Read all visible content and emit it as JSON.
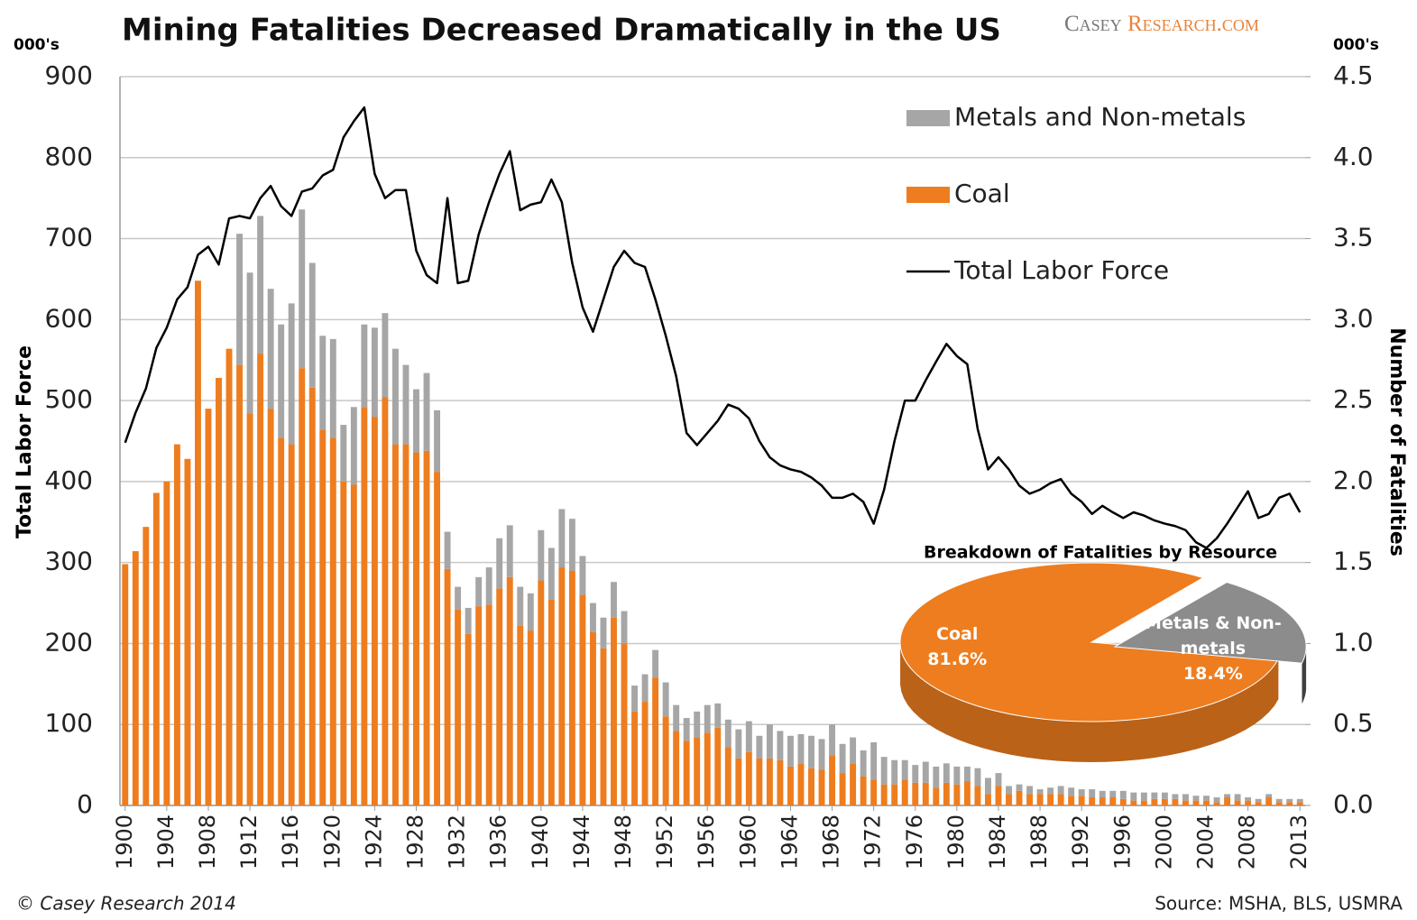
{
  "chart_data": [
    {
      "type": "bar",
      "title": "Mining Fatalities Decreased Dramatically in the US",
      "brand": [
        "Casey ",
        "Research.com"
      ],
      "y_unit": "000's",
      "y2_unit": "000's",
      "ylabel": "Total Labor  Force",
      "y2label": "Number of Fatalities",
      "footer": "© Casey Research 2014",
      "source": "Source:  MSHA, BLS, USMRA",
      "stacked": true,
      "grid": true,
      "categories": [
        "1900",
        null,
        null,
        null,
        "1904",
        null,
        null,
        null,
        "1908",
        null,
        null,
        null,
        "1912",
        null,
        null,
        null,
        "1916",
        null,
        null,
        null,
        "1920",
        null,
        null,
        null,
        "1924",
        null,
        null,
        null,
        "1928",
        null,
        null,
        null,
        "1932",
        null,
        null,
        null,
        "1936",
        null,
        null,
        null,
        "1940",
        null,
        null,
        null,
        "1944",
        null,
        null,
        null,
        "1948",
        null,
        null,
        null,
        "1952",
        null,
        null,
        null,
        "1956",
        null,
        null,
        null,
        "1960",
        null,
        null,
        null,
        "1964",
        null,
        null,
        null,
        "1968",
        null,
        null,
        null,
        "1972",
        null,
        null,
        null,
        "1976",
        null,
        null,
        null,
        "1980",
        null,
        null,
        null,
        "1984",
        null,
        null,
        null,
        "1988",
        null,
        null,
        null,
        "1992",
        null,
        null,
        null,
        "1996",
        null,
        null,
        null,
        "2000",
        null,
        null,
        null,
        "2004",
        null,
        null,
        null,
        "2008",
        null,
        null,
        null,
        null,
        "2013"
      ],
      "series": [
        {
          "name": "Coal",
          "color": "#ee7d1f",
          "axis": "y2",
          "values": [
            1.49,
            1.57,
            1.72,
            1.93,
            2.0,
            2.23,
            2.14,
            3.24,
            2.45,
            2.64,
            2.82,
            2.72,
            2.42,
            2.79,
            2.45,
            2.27,
            2.23,
            2.7,
            2.58,
            2.32,
            2.27,
            2.0,
            1.98,
            2.46,
            2.4,
            2.52,
            2.23,
            2.23,
            2.18,
            2.19,
            2.06,
            1.46,
            1.21,
            1.06,
            1.23,
            1.24,
            1.34,
            1.41,
            1.11,
            1.08,
            1.39,
            1.27,
            1.47,
            1.45,
            1.3,
            1.07,
            0.97,
            1.16,
            1.0,
            0.58,
            0.64,
            0.79,
            0.55,
            0.46,
            0.4,
            0.42,
            0.45,
            0.48,
            0.36,
            0.29,
            0.33,
            0.29,
            0.29,
            0.28,
            0.24,
            0.26,
            0.23,
            0.22,
            0.31,
            0.2,
            0.26,
            0.18,
            0.16,
            0.13,
            0.13,
            0.16,
            0.14,
            0.14,
            0.11,
            0.14,
            0.13,
            0.15,
            0.12,
            0.07,
            0.12,
            0.07,
            0.09,
            0.07,
            0.07,
            0.07,
            0.07,
            0.06,
            0.06,
            0.05,
            0.05,
            0.05,
            0.04,
            0.03,
            0.03,
            0.04,
            0.04,
            0.04,
            0.03,
            0.03,
            0.03,
            0.02,
            0.05,
            0.03,
            0.03,
            0.02,
            0.05,
            0.02,
            0.02,
            0.02
          ]
        },
        {
          "name": "Metals and Non-metals",
          "color": "#a6a6a6",
          "axis": "y2",
          "values": [
            0,
            0,
            0,
            0,
            0,
            0,
            0,
            0,
            0,
            0,
            0,
            0.81,
            0.87,
            0.85,
            0.74,
            0.7,
            0.87,
            0.98,
            0.77,
            0.58,
            0.61,
            0.35,
            0.48,
            0.51,
            0.55,
            0.52,
            0.59,
            0.49,
            0.39,
            0.48,
            0.38,
            0.23,
            0.14,
            0.16,
            0.18,
            0.23,
            0.31,
            0.32,
            0.24,
            0.23,
            0.31,
            0.32,
            0.36,
            0.32,
            0.24,
            0.18,
            0.19,
            0.22,
            0.2,
            0.16,
            0.17,
            0.17,
            0.21,
            0.16,
            0.14,
            0.16,
            0.17,
            0.15,
            0.17,
            0.18,
            0.19,
            0.14,
            0.21,
            0.18,
            0.19,
            0.18,
            0.2,
            0.19,
            0.19,
            0.18,
            0.16,
            0.16,
            0.23,
            0.17,
            0.15,
            0.12,
            0.11,
            0.13,
            0.13,
            0.12,
            0.11,
            0.09,
            0.11,
            0.1,
            0.08,
            0.05,
            0.04,
            0.05,
            0.03,
            0.04,
            0.05,
            0.05,
            0.04,
            0.05,
            0.04,
            0.04,
            0.05,
            0.05,
            0.05,
            0.04,
            0.04,
            0.03,
            0.04,
            0.03,
            0.03,
            0.03,
            0.02,
            0.04,
            0.02,
            0.02,
            0.02,
            0.02,
            0.02,
            0.02
          ]
        },
        {
          "name": "Total Labor Force",
          "type": "line",
          "color": "#000000",
          "values": [
            448,
            485,
            515,
            565,
            590,
            625,
            640,
            680,
            690,
            668,
            725,
            728,
            725,
            750,
            765,
            740,
            728,
            758,
            762,
            778,
            785,
            825,
            845,
            862,
            780,
            750,
            760,
            760,
            685,
            655,
            645,
            750,
            645,
            648,
            705,
            745,
            780,
            808,
            735,
            742,
            745,
            773,
            745,
            670,
            615,
            585,
            625,
            665,
            685,
            670,
            665,
            625,
            580,
            530,
            460,
            445,
            460,
            475,
            495,
            490,
            478,
            450,
            430,
            420,
            415,
            412,
            405,
            395,
            380,
            380,
            385,
            375,
            348,
            390,
            450,
            500,
            500,
            525,
            548,
            570,
            555,
            545,
            465,
            415,
            430,
            415,
            395,
            385,
            390,
            398,
            403,
            385,
            375,
            360,
            370,
            362,
            355,
            362,
            358,
            352,
            348,
            345,
            340,
            325,
            318,
            330,
            348,
            368,
            388,
            355,
            360,
            380,
            385,
            362
          ]
        }
      ],
      "ylim": [
        0,
        900
      ],
      "yticks": [
        0,
        100,
        200,
        300,
        400,
        500,
        600,
        700,
        800,
        900
      ],
      "y2lim": [
        0,
        4.5
      ],
      "y2ticks": [
        {
          "value": 0,
          "label": "0.0"
        },
        0.5,
        {
          "value": 1,
          "label": "1.0"
        },
        1.5,
        {
          "value": 2,
          "label": "2.0"
        },
        2.5,
        {
          "value": 3,
          "label": "3.0"
        },
        3.5,
        {
          "value": 4,
          "label": "4.0"
        },
        4.5
      ]
    },
    {
      "type": "pie",
      "title": "Breakdown of Fatalities by  Resource",
      "labels": [
        "Coal",
        "Metals & Non-metals"
      ],
      "values": [
        81.6,
        18.4
      ],
      "value_labels": [
        "81.6%",
        "18.4%"
      ],
      "colors": [
        "#ee7d1f",
        "#8c8c8c"
      ]
    }
  ]
}
